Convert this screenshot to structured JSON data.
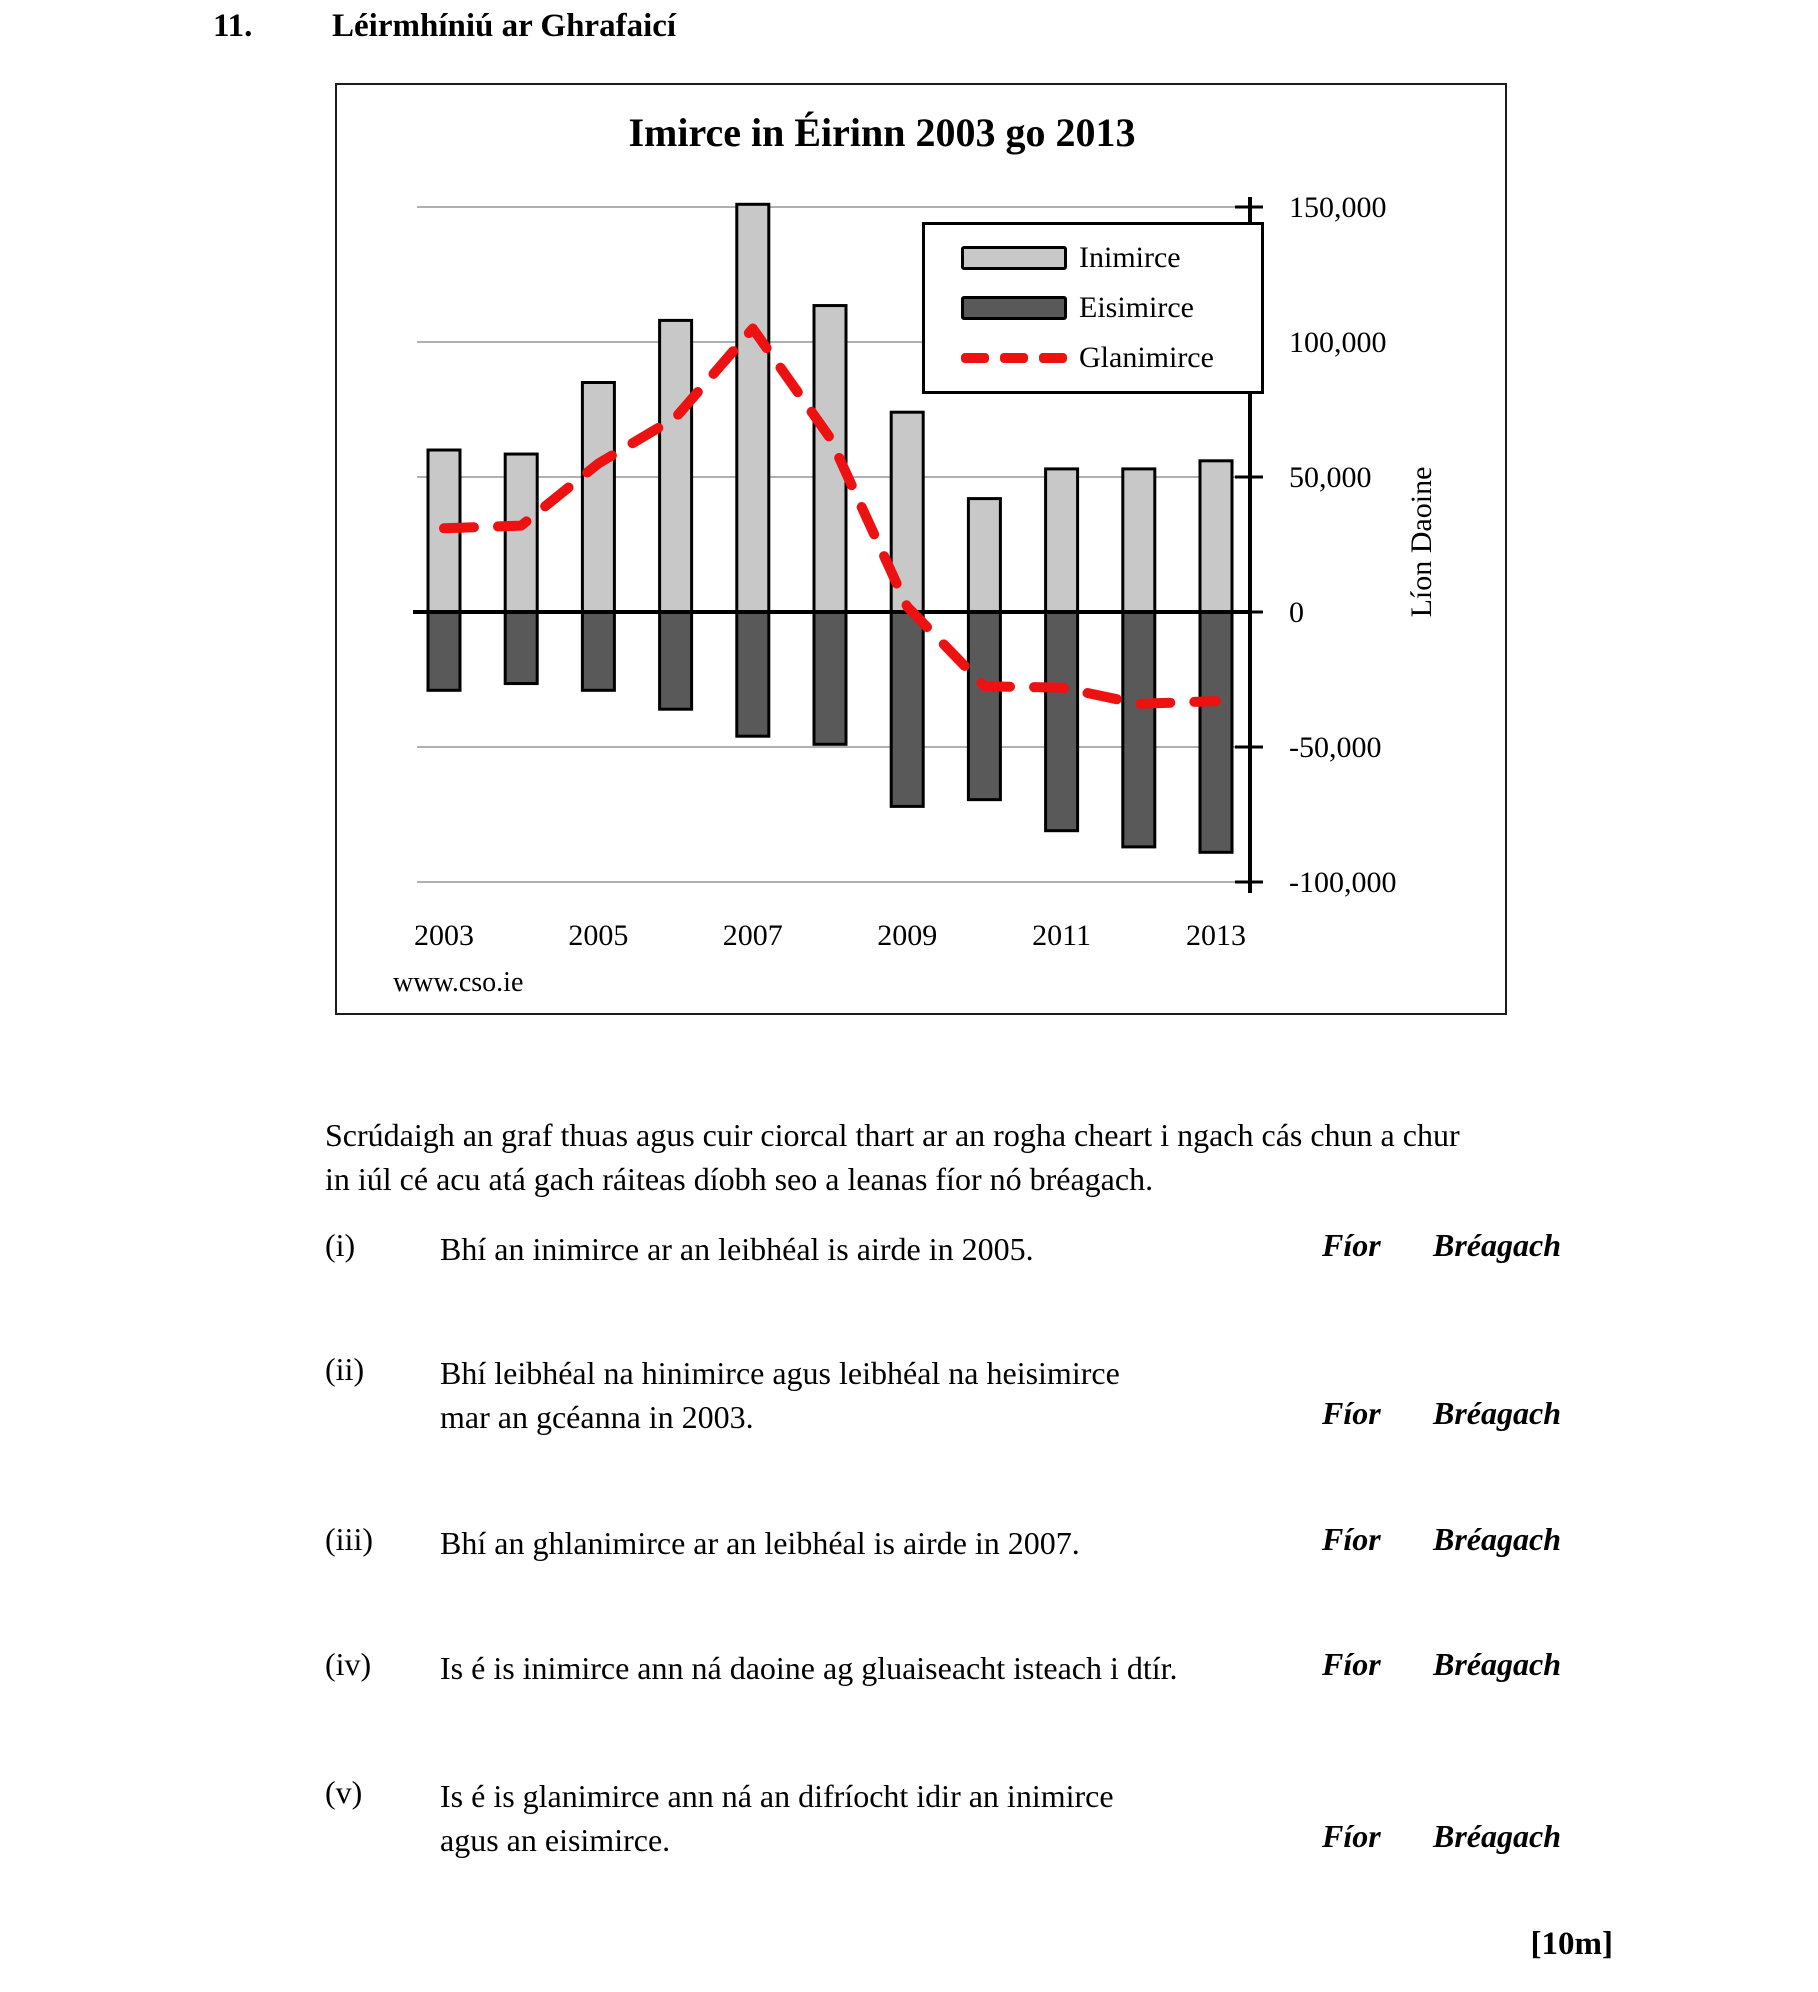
{
  "page": {
    "question_number": "11.",
    "heading": "Léirmhíniú ar Ghrafaicí",
    "instruction": [
      "Scrúdaigh an graf thuas agus cuir ciorcal thart ar an rogha cheart i ngach cás chun a chur",
      "in iúl cé acu atá gach ráiteas díobh seo a leanas fíor nó bréagach."
    ],
    "marks": "[10m]"
  },
  "statements": [
    {
      "num": "(i)",
      "line1": "Bhí an inimirce ar an leibhéal is airde in 2005.",
      "line2": null
    },
    {
      "num": "(ii)",
      "line1": "Bhí leibhéal na hinimirce agus leibhéal na heisimirce",
      "line2": "mar an gcéanna in 2003."
    },
    {
      "num": "(iii)",
      "line1": "Bhí an ghlanimirce ar an leibhéal is airde in 2007.",
      "line2": null
    },
    {
      "num": "(iv)",
      "line1": "Is é is inimirce ann ná daoine ag gluaiseacht isteach i dtír.",
      "line2": null
    },
    {
      "num": "(v)",
      "line1": "Is é is glanimirce ann ná an difríocht idir an inimirce",
      "line2": "agus an eisimirce."
    }
  ],
  "options": {
    "true_label": "Fíor",
    "false_label": "Bréagach"
  },
  "chart_data": {
    "type": "bar",
    "title": "Imirce in Éirinn 2003 go 2013",
    "x": [
      2003,
      2004,
      2005,
      2006,
      2007,
      2008,
      2009,
      2010,
      2011,
      2012,
      2013
    ],
    "series": [
      {
        "name": "Inimirce",
        "type": "bar",
        "color": "#c8c8c8",
        "values": [
          60000,
          58500,
          85000,
          108000,
          151000,
          113500,
          74000,
          42000,
          53000,
          53000,
          56000
        ]
      },
      {
        "name": "Eisimirce",
        "type": "bar",
        "color": "#595959",
        "values": [
          -29000,
          -26500,
          -29000,
          -36000,
          -46000,
          -49000,
          -72000,
          -69500,
          -81000,
          -87000,
          -89000
        ]
      },
      {
        "name": "Glanimirce",
        "type": "line",
        "color": "#ee1111",
        "dashed": true,
        "values": [
          31000,
          32000,
          55000,
          72000,
          105000,
          64500,
          2000,
          -27500,
          -28000,
          -34000,
          -33000
        ]
      }
    ],
    "ylabel": "Líon Daoine",
    "yticks": [
      150000,
      100000,
      50000,
      0,
      -50000,
      -100000
    ],
    "ytick_labels": [
      "150,000",
      "100,000",
      "50,000",
      "0",
      "-50,000",
      "-100,000"
    ],
    "xtick_labels": [
      "2003",
      "2005",
      "2007",
      "2009",
      "2011",
      "2013"
    ],
    "ylim": [
      -100000,
      160000
    ],
    "grid": true,
    "legend_position": "upper-right-inside",
    "source": "www.cso.ie"
  }
}
